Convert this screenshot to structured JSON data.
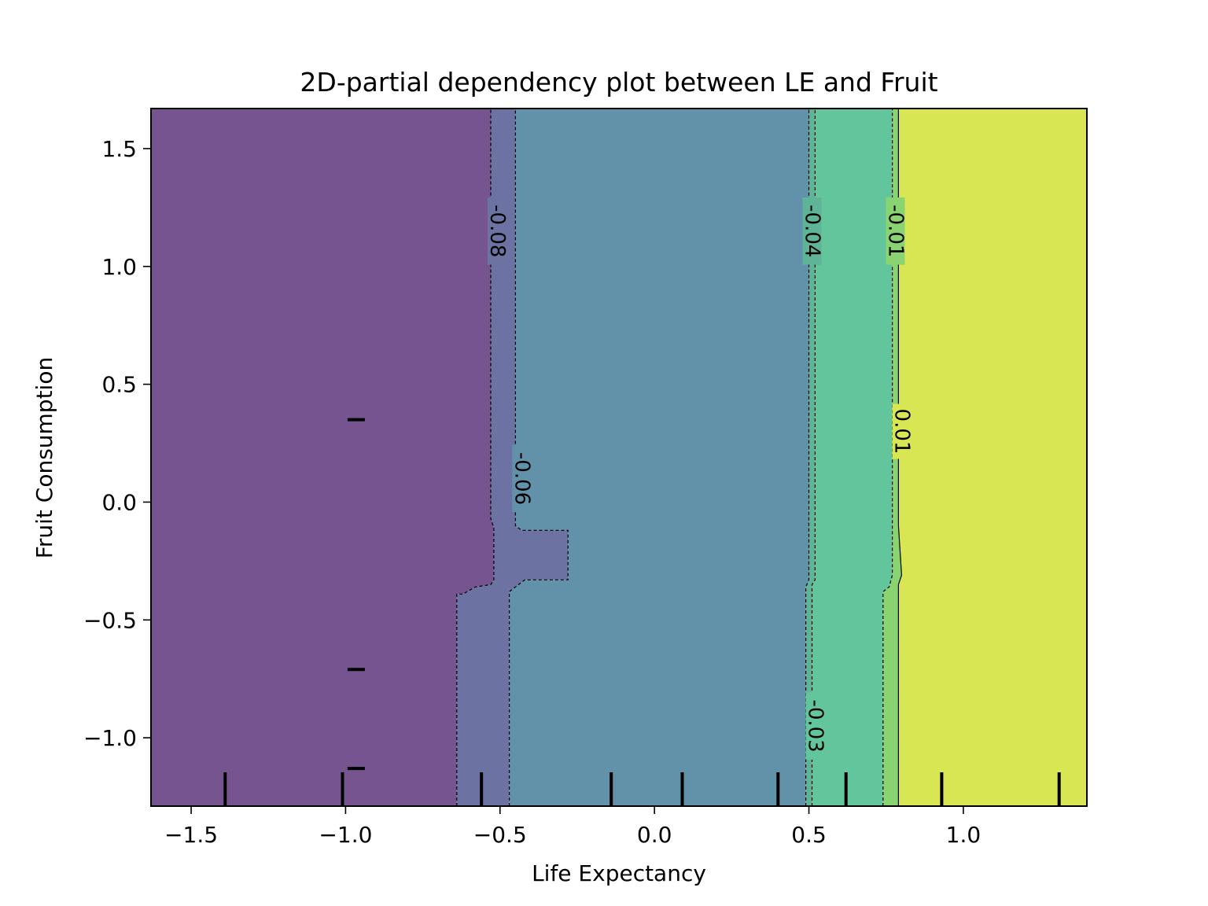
{
  "chart_data": {
    "type": "contour",
    "title": "2D-partial dependency plot between LE and Fruit",
    "xlabel": "Life Expectancy",
    "ylabel": "Fruit Consumption",
    "xlim": [
      -1.63,
      1.4
    ],
    "ylim": [
      -1.29,
      1.67
    ],
    "x_ticks": [
      {
        "value": -1.5,
        "label": "−1.5"
      },
      {
        "value": -1.0,
        "label": "−1.0"
      },
      {
        "value": -0.5,
        "label": "−0.5"
      },
      {
        "value": 0.0,
        "label": "0.0"
      },
      {
        "value": 0.5,
        "label": "0.5"
      },
      {
        "value": 1.0,
        "label": "1.0"
      }
    ],
    "y_ticks": [
      {
        "value": -1.0,
        "label": "−1.0"
      },
      {
        "value": -0.5,
        "label": "−0.5"
      },
      {
        "value": 0.0,
        "label": "0.0"
      },
      {
        "value": 0.5,
        "label": "0.5"
      },
      {
        "value": 1.0,
        "label": "1.0"
      },
      {
        "value": 1.5,
        "label": "1.5"
      }
    ],
    "contour_labels": [
      {
        "text": "-0.08",
        "x": -0.51,
        "y": 1.15
      },
      {
        "text": "-0.06",
        "x": -0.43,
        "y": 0.1
      },
      {
        "text": "-0.04",
        "x": 0.51,
        "y": 1.15
      },
      {
        "text": "-0.03",
        "x": 0.52,
        "y": -0.95
      },
      {
        "text": "-0.01",
        "x": 0.78,
        "y": 1.15
      },
      {
        "text": "0.01",
        "x": 0.8,
        "y": 0.3
      }
    ],
    "x_deciles": [
      -1.39,
      -1.01,
      -0.56,
      -0.14,
      0.09,
      0.4,
      0.62,
      0.93,
      1.31
    ],
    "y_deciles": [
      -1.13,
      -0.71,
      0.35
    ],
    "colors": {
      "level1": "#76548f",
      "level2": "#6c73a2",
      "level3": "#6292aa",
      "level4": "#5fb397",
      "level5": "#63c59b",
      "level6": "#8ad371",
      "level7": "#d9e654"
    }
  }
}
